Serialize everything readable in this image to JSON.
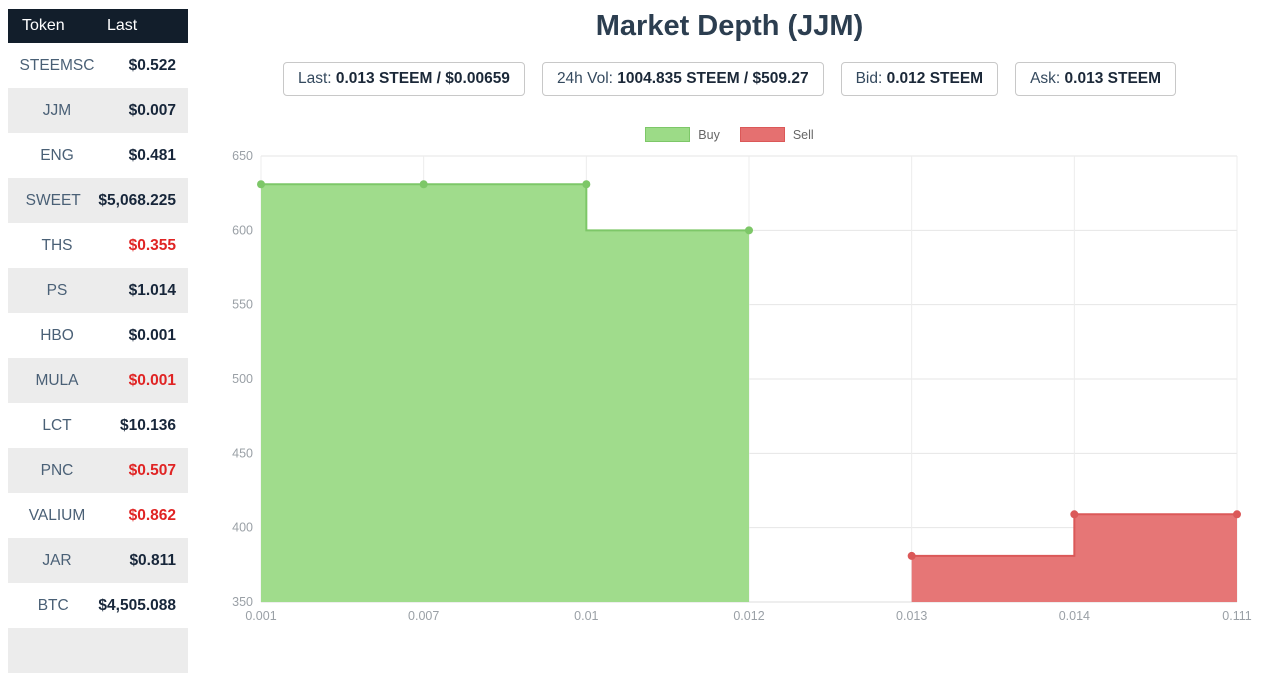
{
  "sidebar": {
    "header": {
      "token": "Token",
      "last": "Last"
    },
    "rows": [
      {
        "token": "STEEMSC",
        "last": "$0.522",
        "red": false
      },
      {
        "token": "JJM",
        "last": "$0.007",
        "red": false
      },
      {
        "token": "ENG",
        "last": "$0.481",
        "red": false
      },
      {
        "token": "SWEET",
        "last": "$5,068.225",
        "red": false
      },
      {
        "token": "THS",
        "last": "$0.355",
        "red": true
      },
      {
        "token": "PS",
        "last": "$1.014",
        "red": false
      },
      {
        "token": "HBO",
        "last": "$0.001",
        "red": false
      },
      {
        "token": "MULA",
        "last": "$0.001",
        "red": true
      },
      {
        "token": "LCT",
        "last": "$10.136",
        "red": false
      },
      {
        "token": "PNC",
        "last": "$0.507",
        "red": true
      },
      {
        "token": "VALIUM",
        "last": "$0.862",
        "red": true
      },
      {
        "token": "JAR",
        "last": "$0.811",
        "red": false
      },
      {
        "token": "BTC",
        "last": "$4,505.088",
        "red": false
      }
    ],
    "colors": {
      "header_bg": "#121e2b",
      "stripe_bg": "#ececec",
      "negative": "#e02424"
    }
  },
  "main": {
    "title": "Market Depth (JJM)",
    "stats": [
      {
        "id": "last",
        "label": "Last:",
        "value": "0.013 STEEM / $0.00659"
      },
      {
        "id": "volume",
        "label": "24h Vol:",
        "value": "1004.835 STEEM / $509.27"
      },
      {
        "id": "bid",
        "label": "Bid:",
        "value": "0.012 STEEM"
      },
      {
        "id": "ask",
        "label": "Ask:",
        "value": "0.013 STEEM"
      }
    ]
  },
  "chart_data": {
    "type": "area",
    "title": "Market Depth (JJM)",
    "categories": [
      "0.001",
      "0.007",
      "0.01",
      "0.012",
      "0.013",
      "0.014",
      "0.111"
    ],
    "xlabel": "",
    "ylabel": "",
    "ylim": [
      350,
      650
    ],
    "y_ticks": [
      350,
      400,
      450,
      500,
      550,
      600,
      650
    ],
    "grid": true,
    "legend_position": "top",
    "series": [
      {
        "name": "Buy",
        "fill": "#9cdb87",
        "stroke": "#7dc768",
        "points": [
          [
            "0.001",
            631
          ],
          [
            "0.007",
            631
          ],
          [
            "0.01",
            631
          ],
          [
            "0.01",
            600
          ],
          [
            "0.012",
            600
          ]
        ],
        "markers": [
          [
            "0.001",
            631
          ],
          [
            "0.007",
            631
          ],
          [
            "0.01",
            631
          ],
          [
            "0.012",
            600
          ]
        ]
      },
      {
        "name": "Sell",
        "fill": "#e57070",
        "stroke": "#db5858",
        "points": [
          [
            "0.013",
            381
          ],
          [
            "0.014",
            381
          ],
          [
            "0.014",
            409
          ],
          [
            "0.111",
            409
          ]
        ],
        "markers": [
          [
            "0.013",
            381
          ],
          [
            "0.014",
            409
          ],
          [
            "0.111",
            409
          ]
        ]
      }
    ]
  }
}
